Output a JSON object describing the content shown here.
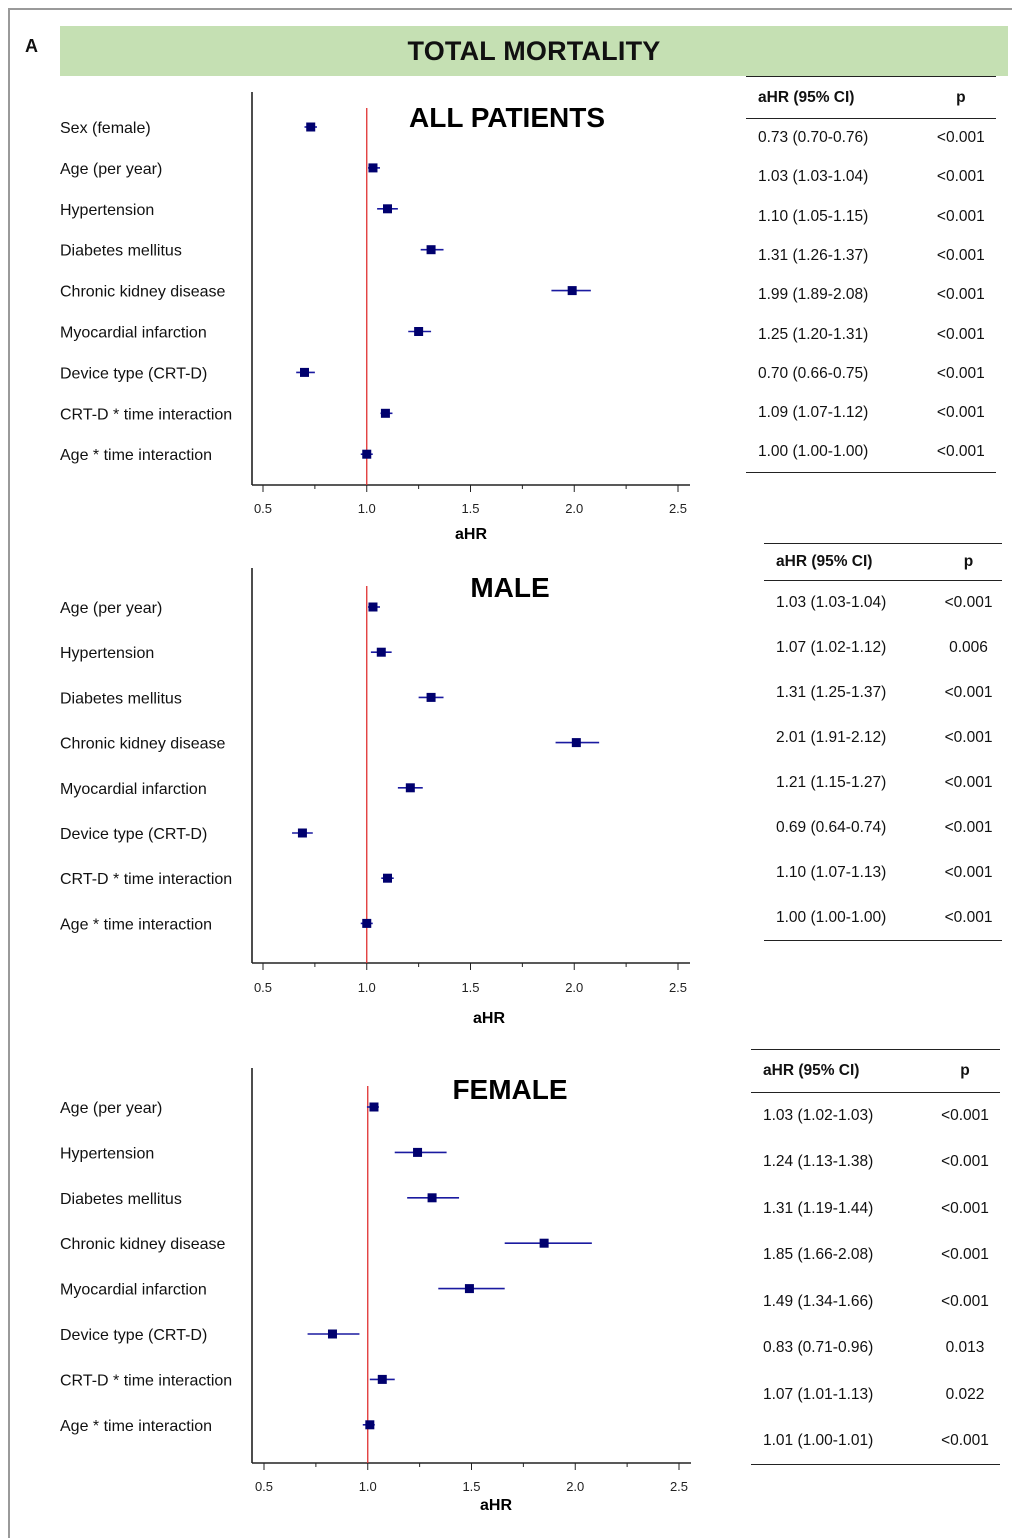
{
  "panel_letter": "A",
  "title": "TOTAL MORTALITY",
  "table_headers": {
    "hr": "aHR (95% CI)",
    "p": "p"
  },
  "colors": {
    "banner": "#c5e0b3",
    "marker": "#00006e",
    "ci_line": "#1a1aa0",
    "reference_line": "#e03030",
    "axis": "#222222"
  },
  "chart_data": [
    {
      "type": "forest",
      "title": "ALL PATIENTS",
      "xlabel": "aHR",
      "xlim": [
        0.5,
        2.5
      ],
      "xticks": [
        "0.5",
        "1.0",
        "1.5",
        "2.0",
        "2.5"
      ],
      "reference_line": 1.0,
      "rows": [
        {
          "label": "Sex (female)",
          "hr": 0.73,
          "lo": 0.7,
          "hi": 0.76,
          "ci_text": "0.73 (0.70-0.76)",
          "p": "<0.001"
        },
        {
          "label": "Age (per year)",
          "hr": 1.03,
          "lo": 1.03,
          "hi": 1.04,
          "ci_text": "1.03 (1.03-1.04)",
          "p": "<0.001"
        },
        {
          "label": "Hypertension",
          "hr": 1.1,
          "lo": 1.05,
          "hi": 1.15,
          "ci_text": "1.10 (1.05-1.15)",
          "p": "<0.001"
        },
        {
          "label": "Diabetes mellitus",
          "hr": 1.31,
          "lo": 1.26,
          "hi": 1.37,
          "ci_text": "1.31 (1.26-1.37)",
          "p": "<0.001"
        },
        {
          "label": "Chronic kidney disease",
          "hr": 1.99,
          "lo": 1.89,
          "hi": 2.08,
          "ci_text": "1.99 (1.89-2.08)",
          "p": "<0.001"
        },
        {
          "label": "Myocardial infarction",
          "hr": 1.25,
          "lo": 1.2,
          "hi": 1.31,
          "ci_text": "1.25 (1.20-1.31)",
          "p": "<0.001"
        },
        {
          "label": "Device type (CRT-D)",
          "hr": 0.7,
          "lo": 0.66,
          "hi": 0.75,
          "ci_text": "0.70 (0.66-0.75)",
          "p": "<0.001"
        },
        {
          "label": "CRT-D * time interaction",
          "hr": 1.09,
          "lo": 1.07,
          "hi": 1.12,
          "ci_text": "1.09 (1.07-1.12)",
          "p": "<0.001"
        },
        {
          "label": "Age * time interaction",
          "hr": 1.0,
          "lo": 1.0,
          "hi": 1.0,
          "ci_text": "1.00 (1.00-1.00)",
          "p": "<0.001"
        }
      ]
    },
    {
      "type": "forest",
      "title": "MALE",
      "xlabel": "aHR",
      "xlim": [
        0.5,
        2.5
      ],
      "xticks": [
        "0.5",
        "1.0",
        "1.5",
        "2.0",
        "2.5"
      ],
      "reference_line": 1.0,
      "rows": [
        {
          "label": "Age (per year)",
          "hr": 1.03,
          "lo": 1.03,
          "hi": 1.04,
          "ci_text": "1.03 (1.03-1.04)",
          "p": "<0.001"
        },
        {
          "label": "Hypertension",
          "hr": 1.07,
          "lo": 1.02,
          "hi": 1.12,
          "ci_text": "1.07 (1.02-1.12)",
          "p": "0.006"
        },
        {
          "label": "Diabetes mellitus",
          "hr": 1.31,
          "lo": 1.25,
          "hi": 1.37,
          "ci_text": "1.31 (1.25-1.37)",
          "p": "<0.001"
        },
        {
          "label": "Chronic kidney disease",
          "hr": 2.01,
          "lo": 1.91,
          "hi": 2.12,
          "ci_text": "2.01 (1.91-2.12)",
          "p": "<0.001"
        },
        {
          "label": "Myocardial infarction",
          "hr": 1.21,
          "lo": 1.15,
          "hi": 1.27,
          "ci_text": "1.21 (1.15-1.27)",
          "p": "<0.001"
        },
        {
          "label": "Device type (CRT-D)",
          "hr": 0.69,
          "lo": 0.64,
          "hi": 0.74,
          "ci_text": "0.69 (0.64-0.74)",
          "p": "<0.001"
        },
        {
          "label": "CRT-D * time interaction",
          "hr": 1.1,
          "lo": 1.07,
          "hi": 1.13,
          "ci_text": "1.10 (1.07-1.13)",
          "p": "<0.001"
        },
        {
          "label": "Age * time interaction",
          "hr": 1.0,
          "lo": 1.0,
          "hi": 1.0,
          "ci_text": "1.00 (1.00-1.00)",
          "p": "<0.001"
        }
      ]
    },
    {
      "type": "forest",
      "title": "FEMALE",
      "xlabel": "aHR",
      "xlim": [
        0.5,
        2.5
      ],
      "xticks": [
        "0.5",
        "1.0",
        "1.5",
        "2.0",
        "2.5"
      ],
      "reference_line": 1.0,
      "rows": [
        {
          "label": "Age (per year)",
          "hr": 1.03,
          "lo": 1.02,
          "hi": 1.03,
          "ci_text": "1.03 (1.02-1.03)",
          "p": "<0.001"
        },
        {
          "label": "Hypertension",
          "hr": 1.24,
          "lo": 1.13,
          "hi": 1.38,
          "ci_text": "1.24 (1.13-1.38)",
          "p": "<0.001"
        },
        {
          "label": "Diabetes mellitus",
          "hr": 1.31,
          "lo": 1.19,
          "hi": 1.44,
          "ci_text": "1.31 (1.19-1.44)",
          "p": "<0.001"
        },
        {
          "label": "Chronic kidney disease",
          "hr": 1.85,
          "lo": 1.66,
          "hi": 2.08,
          "ci_text": "1.85 (1.66-2.08)",
          "p": "<0.001"
        },
        {
          "label": "Myocardial infarction",
          "hr": 1.49,
          "lo": 1.34,
          "hi": 1.66,
          "ci_text": "1.49 (1.34-1.66)",
          "p": "<0.001"
        },
        {
          "label": "Device type (CRT-D)",
          "hr": 0.83,
          "lo": 0.71,
          "hi": 0.96,
          "ci_text": "0.83 (0.71-0.96)",
          "p": "0.013"
        },
        {
          "label": "CRT-D * time interaction",
          "hr": 1.07,
          "lo": 1.01,
          "hi": 1.13,
          "ci_text": "1.07 (1.01-1.13)",
          "p": "0.022"
        },
        {
          "label": "Age * time interaction",
          "hr": 1.01,
          "lo": 1.0,
          "hi": 1.01,
          "ci_text": "1.01 (1.00-1.01)",
          "p": "<0.001"
        }
      ]
    }
  ]
}
